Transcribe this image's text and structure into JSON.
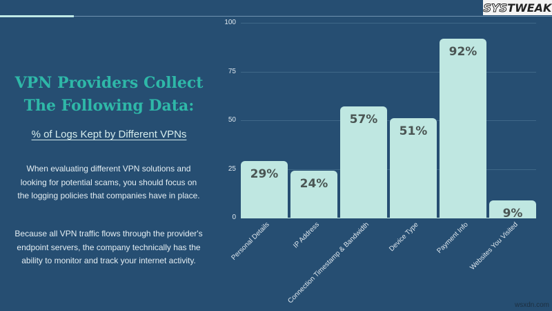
{
  "brand": {
    "logo_prefix": "SYS",
    "logo_suffix": "TWEAK"
  },
  "heading": {
    "title_line1": "VPN Providers Collect",
    "title_line2": "The Following Data:",
    "subtitle": "% of Logs Kept by Different VPNs"
  },
  "body": {
    "paragraph1": "When evaluating different VPN solutions and looking for potential scams, you should focus on the logging policies that companies have in place.",
    "paragraph2": "Because all VPN traffic flows through the provider's endpoint servers, the company technically has the ability to monitor and track your internet activity."
  },
  "watermark": "wsxdn.com",
  "chart_data": {
    "type": "bar",
    "title": "% of Logs Kept by Different VPNs",
    "xlabel": "",
    "ylabel": "",
    "ylim": [
      0,
      100
    ],
    "yticks": [
      "100",
      "75",
      "50",
      "25",
      "0"
    ],
    "grid": true,
    "legend": null,
    "categories": [
      "Personal Details",
      "IP Address",
      "Connection Timestamp & Bandwidth",
      "Device Type",
      "Payment Info",
      "Websites You Visited"
    ],
    "values": [
      29,
      24,
      57,
      51,
      92,
      9
    ],
    "data_labels": [
      "29%",
      "24%",
      "57%",
      "51%",
      "92%",
      "9%"
    ],
    "colors": {
      "bar": "#bfe7e1",
      "label": "#4a5553",
      "background": "#264e72"
    }
  }
}
